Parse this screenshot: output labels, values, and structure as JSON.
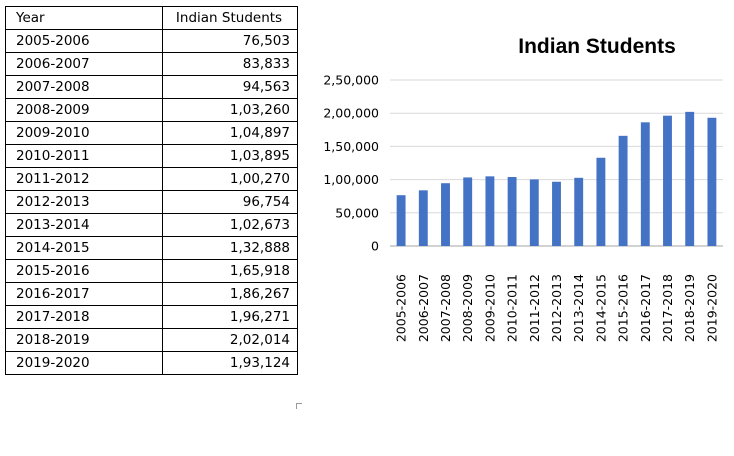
{
  "table": {
    "headers": [
      "Year",
      "Indian Students"
    ],
    "rows": [
      [
        "2005-2006",
        "76,503"
      ],
      [
        "2006-2007",
        "83,833"
      ],
      [
        "2007-2008",
        "94,563"
      ],
      [
        "2008-2009",
        "1,03,260"
      ],
      [
        "2009-2010",
        "1,04,897"
      ],
      [
        "2010-2011",
        "1,03,895"
      ],
      [
        "2011-2012",
        "1,00,270"
      ],
      [
        "2012-2013",
        "96,754"
      ],
      [
        "2013-2014",
        "1,02,673"
      ],
      [
        "2014-2015",
        "1,32,888"
      ],
      [
        "2015-2016",
        "1,65,918"
      ],
      [
        "2016-2017",
        "1,86,267"
      ],
      [
        "2017-2018",
        "1,96,271"
      ],
      [
        "2018-2019",
        "2,02,014"
      ],
      [
        "2019-2020",
        "1,93,124"
      ]
    ]
  },
  "chart_data": {
    "type": "bar",
    "title": "Indian Students",
    "xlabel": "",
    "ylabel": "",
    "categories": [
      "2005-2006",
      "2006-2007",
      "2007-2008",
      "2008-2009",
      "2009-2010",
      "2010-2011",
      "2011-2012",
      "2012-2013",
      "2013-2014",
      "2014-2015",
      "2015-2016",
      "2016-2017",
      "2017-2018",
      "2018-2019",
      "2019-2020"
    ],
    "values": [
      76503,
      83833,
      94563,
      103260,
      104897,
      103895,
      100270,
      96754,
      102673,
      132888,
      165918,
      186267,
      196271,
      202014,
      193124
    ],
    "ylim": [
      0,
      250000
    ],
    "yticks": [
      0,
      50000,
      100000,
      150000,
      200000,
      250000
    ],
    "ytick_labels": [
      "0",
      "50,000",
      "1,00,000",
      "1,50,000",
      "2,00,000",
      "2,50,000"
    ],
    "grid": true,
    "bar_color": "#4472C4",
    "grid_color": "#d9d9d9"
  }
}
